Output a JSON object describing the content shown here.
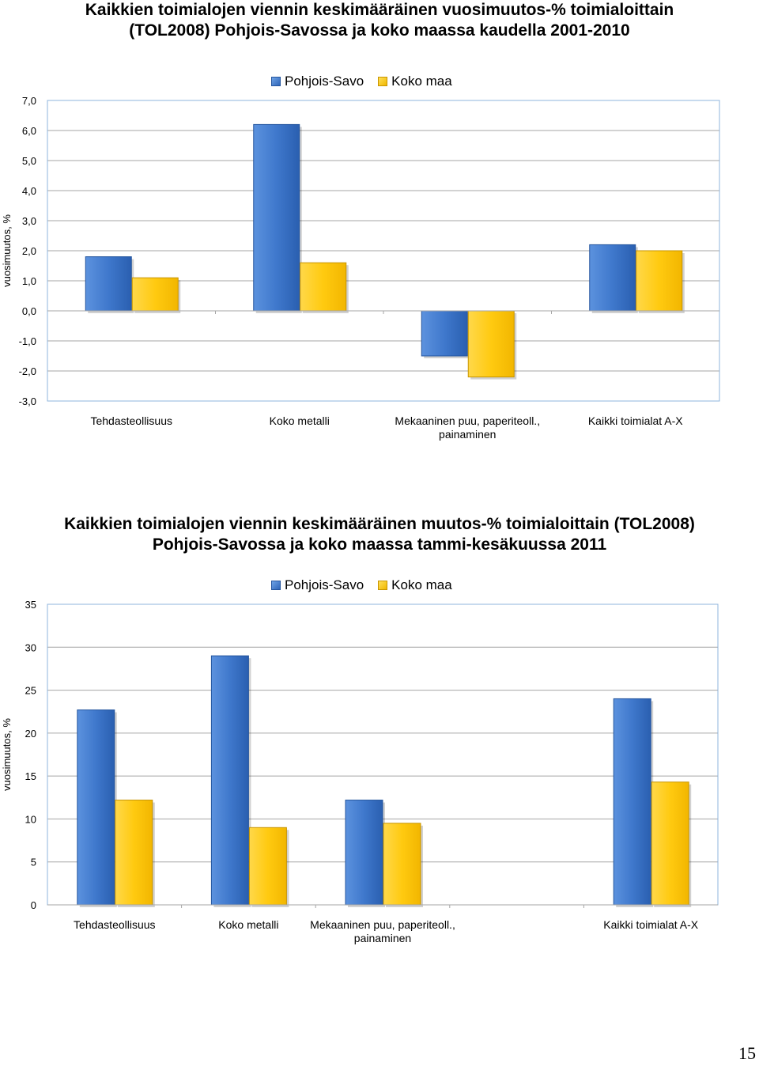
{
  "chart_data": [
    {
      "type": "bar",
      "title": "Kaikkien toimialojen viennin keskimääräinen vuosimuutos-% toimialoittain  (TOL2008) Pohjois-Savossa ja koko maassa kaudella 2001-2010",
      "ylabel": "vuosimuutos, %",
      "xlabel": "",
      "categories": [
        [
          "Tehdasteollisuus"
        ],
        [
          "Koko metalli"
        ],
        [
          "Mekaaninen puu, paperiteoll.,",
          "painaminen"
        ],
        [
          "Kaikki toimialat A-X"
        ]
      ],
      "series": [
        {
          "name": "Pohjois-Savo",
          "color": "#3a74c8",
          "values": [
            1.8,
            6.2,
            -1.5,
            2.2
          ]
        },
        {
          "name": "Koko maa",
          "color": "#ffc800",
          "values": [
            1.1,
            1.6,
            -2.2,
            2.0
          ]
        }
      ],
      "ylim": [
        -3.0,
        7.0
      ],
      "yticks": [
        "-3,0",
        "-2,0",
        "-1,0",
        "0,0",
        "1,0",
        "2,0",
        "3,0",
        "4,0",
        "5,0",
        "6,0",
        "7,0"
      ],
      "grid": true,
      "legend": "top"
    },
    {
      "type": "bar",
      "title": "Kaikkien toimialojen viennin keskimääräinen muutos-%  toimialoittain (TOL2008) Pohjois-Savossa ja koko maassa tammi-kesäkuussa 2011",
      "ylabel": "vuosimuutos, %",
      "xlabel": "",
      "categories": [
        [
          "Tehdasteollisuus"
        ],
        [
          "Koko metalli"
        ],
        [
          "Mekaaninen puu, paperiteoll.,",
          "painaminen"
        ],
        [
          ""
        ],
        [
          "Kaikki toimialat A-X"
        ]
      ],
      "series": [
        {
          "name": "Pohjois-Savo",
          "color": "#3a74c8",
          "values": [
            22.7,
            29.0,
            12.2,
            null,
            24.0
          ]
        },
        {
          "name": "Koko maa",
          "color": "#ffc800",
          "values": [
            12.2,
            9.0,
            9.5,
            null,
            14.3
          ]
        }
      ],
      "ylim": [
        0,
        35
      ],
      "yticks": [
        "0",
        "5",
        "10",
        "15",
        "20",
        "25",
        "30",
        "35"
      ],
      "grid": true,
      "legend": "top"
    }
  ],
  "page_number": "15"
}
